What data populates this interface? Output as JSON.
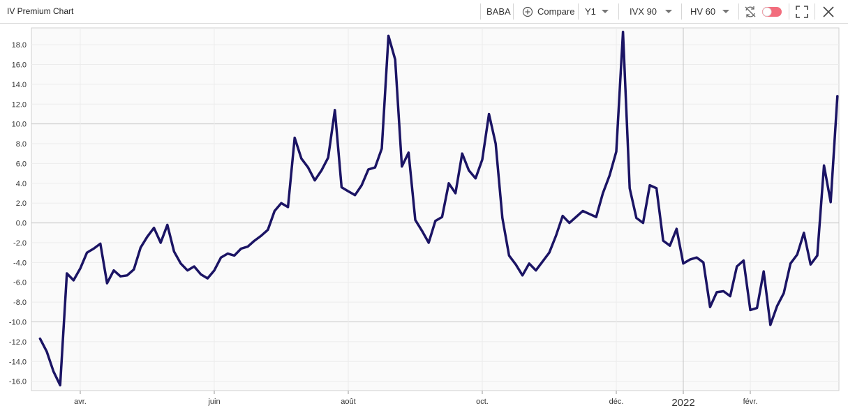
{
  "header": {
    "title": "IV Premium Chart",
    "ticker": "BABA",
    "compare": "Compare",
    "period": "Y1",
    "iv_measure": "IVX 90",
    "hv_measure": "HV 60"
  },
  "chart_data": {
    "type": "line",
    "categories": [
      null,
      null,
      null,
      null,
      null,
      null,
      "avr.",
      null,
      null,
      null,
      null,
      null,
      null,
      null,
      null,
      null,
      null,
      null,
      null,
      null,
      null,
      null,
      null,
      null,
      null,
      null,
      "juin",
      null,
      null,
      null,
      null,
      null,
      null,
      null,
      null,
      null,
      null,
      null,
      null,
      null,
      null,
      null,
      null,
      null,
      null,
      null,
      "août",
      null,
      null,
      null,
      null,
      null,
      null,
      null,
      null,
      null,
      null,
      null,
      null,
      null,
      null,
      null,
      null,
      null,
      null,
      null,
      "oct.",
      null,
      null,
      null,
      null,
      null,
      null,
      null,
      null,
      null,
      null,
      null,
      null,
      null,
      null,
      null,
      null,
      null,
      null,
      null,
      "déc.",
      null,
      null,
      null,
      null,
      null,
      null,
      null,
      null,
      null,
      "2022",
      null,
      null,
      null,
      null,
      null,
      null,
      null,
      null,
      null,
      "févr.",
      null,
      null,
      null,
      null,
      null,
      null,
      null,
      null,
      null,
      null,
      null,
      null,
      null
    ],
    "series": [
      {
        "name": "BABA",
        "color": "#1b1464",
        "values": [
          -11.7,
          -13.0,
          -15.0,
          -16.4,
          -5.1,
          -5.8,
          -4.6,
          -3.0,
          -2.6,
          -2.1,
          -6.1,
          -4.8,
          -5.4,
          -5.3,
          -4.7,
          -2.5,
          -1.4,
          -0.5,
          -2.0,
          -0.2,
          -2.9,
          -4.1,
          -4.8,
          -4.4,
          -5.2,
          -5.6,
          -4.8,
          -3.5,
          -3.1,
          -3.3,
          -2.6,
          -2.4,
          -1.8,
          -1.3,
          -0.7,
          1.2,
          2.0,
          1.6,
          8.6,
          6.5,
          5.6,
          4.3,
          5.3,
          6.6,
          11.4,
          3.6,
          3.2,
          2.8,
          3.8,
          5.4,
          5.6,
          7.5,
          18.9,
          16.5,
          5.7,
          7.1,
          0.3,
          -0.8,
          -2.0,
          0.2,
          0.6,
          4.0,
          3.0,
          7.0,
          5.3,
          4.5,
          6.4,
          11.0,
          8.0,
          0.5,
          -3.3,
          -4.2,
          -5.3,
          -4.1,
          -4.8,
          -3.9,
          -3.0,
          -1.3,
          0.7,
          0.0,
          0.6,
          1.2,
          0.9,
          0.6,
          3.0,
          4.8,
          7.2,
          19.3,
          3.5,
          0.5,
          0.0,
          3.8,
          3.5,
          -1.8,
          -2.3,
          -0.6,
          -4.1,
          -3.7,
          -3.5,
          -4.0,
          -8.5,
          -7.0,
          -6.9,
          -7.4,
          -4.4,
          -3.8,
          -8.8,
          -8.6,
          -4.9,
          -10.3,
          -8.4,
          -7.1,
          -4.1,
          -3.2,
          -1.0,
          -4.2,
          -3.3,
          5.8,
          2.1,
          12.8
        ]
      }
    ],
    "ylim": [
      -16.8,
      19.7
    ],
    "yticks": [
      {
        "value": -16,
        "label": "-16.0"
      },
      {
        "value": -14,
        "label": "-14.0"
      },
      {
        "value": -12,
        "label": "-12.0"
      },
      {
        "value": -10,
        "label": "-10.0"
      },
      {
        "value": -8,
        "label": "-8.0"
      },
      {
        "value": -6,
        "label": "-6.0"
      },
      {
        "value": -4,
        "label": "-4.0"
      },
      {
        "value": -2,
        "label": "-2.0"
      },
      {
        "value": 0,
        "label": "0.0"
      },
      {
        "value": 2,
        "label": "2.0"
      },
      {
        "value": 4,
        "label": "4.0"
      },
      {
        "value": 6,
        "label": "6.0"
      },
      {
        "value": 8,
        "label": "8.0"
      },
      {
        "value": 10,
        "label": "10.0"
      },
      {
        "value": 12,
        "label": "12.0"
      },
      {
        "value": 14,
        "label": "14.0"
      },
      {
        "value": 16,
        "label": "16.0"
      },
      {
        "value": 18,
        "label": "18.0"
      }
    ],
    "grid": true
  }
}
